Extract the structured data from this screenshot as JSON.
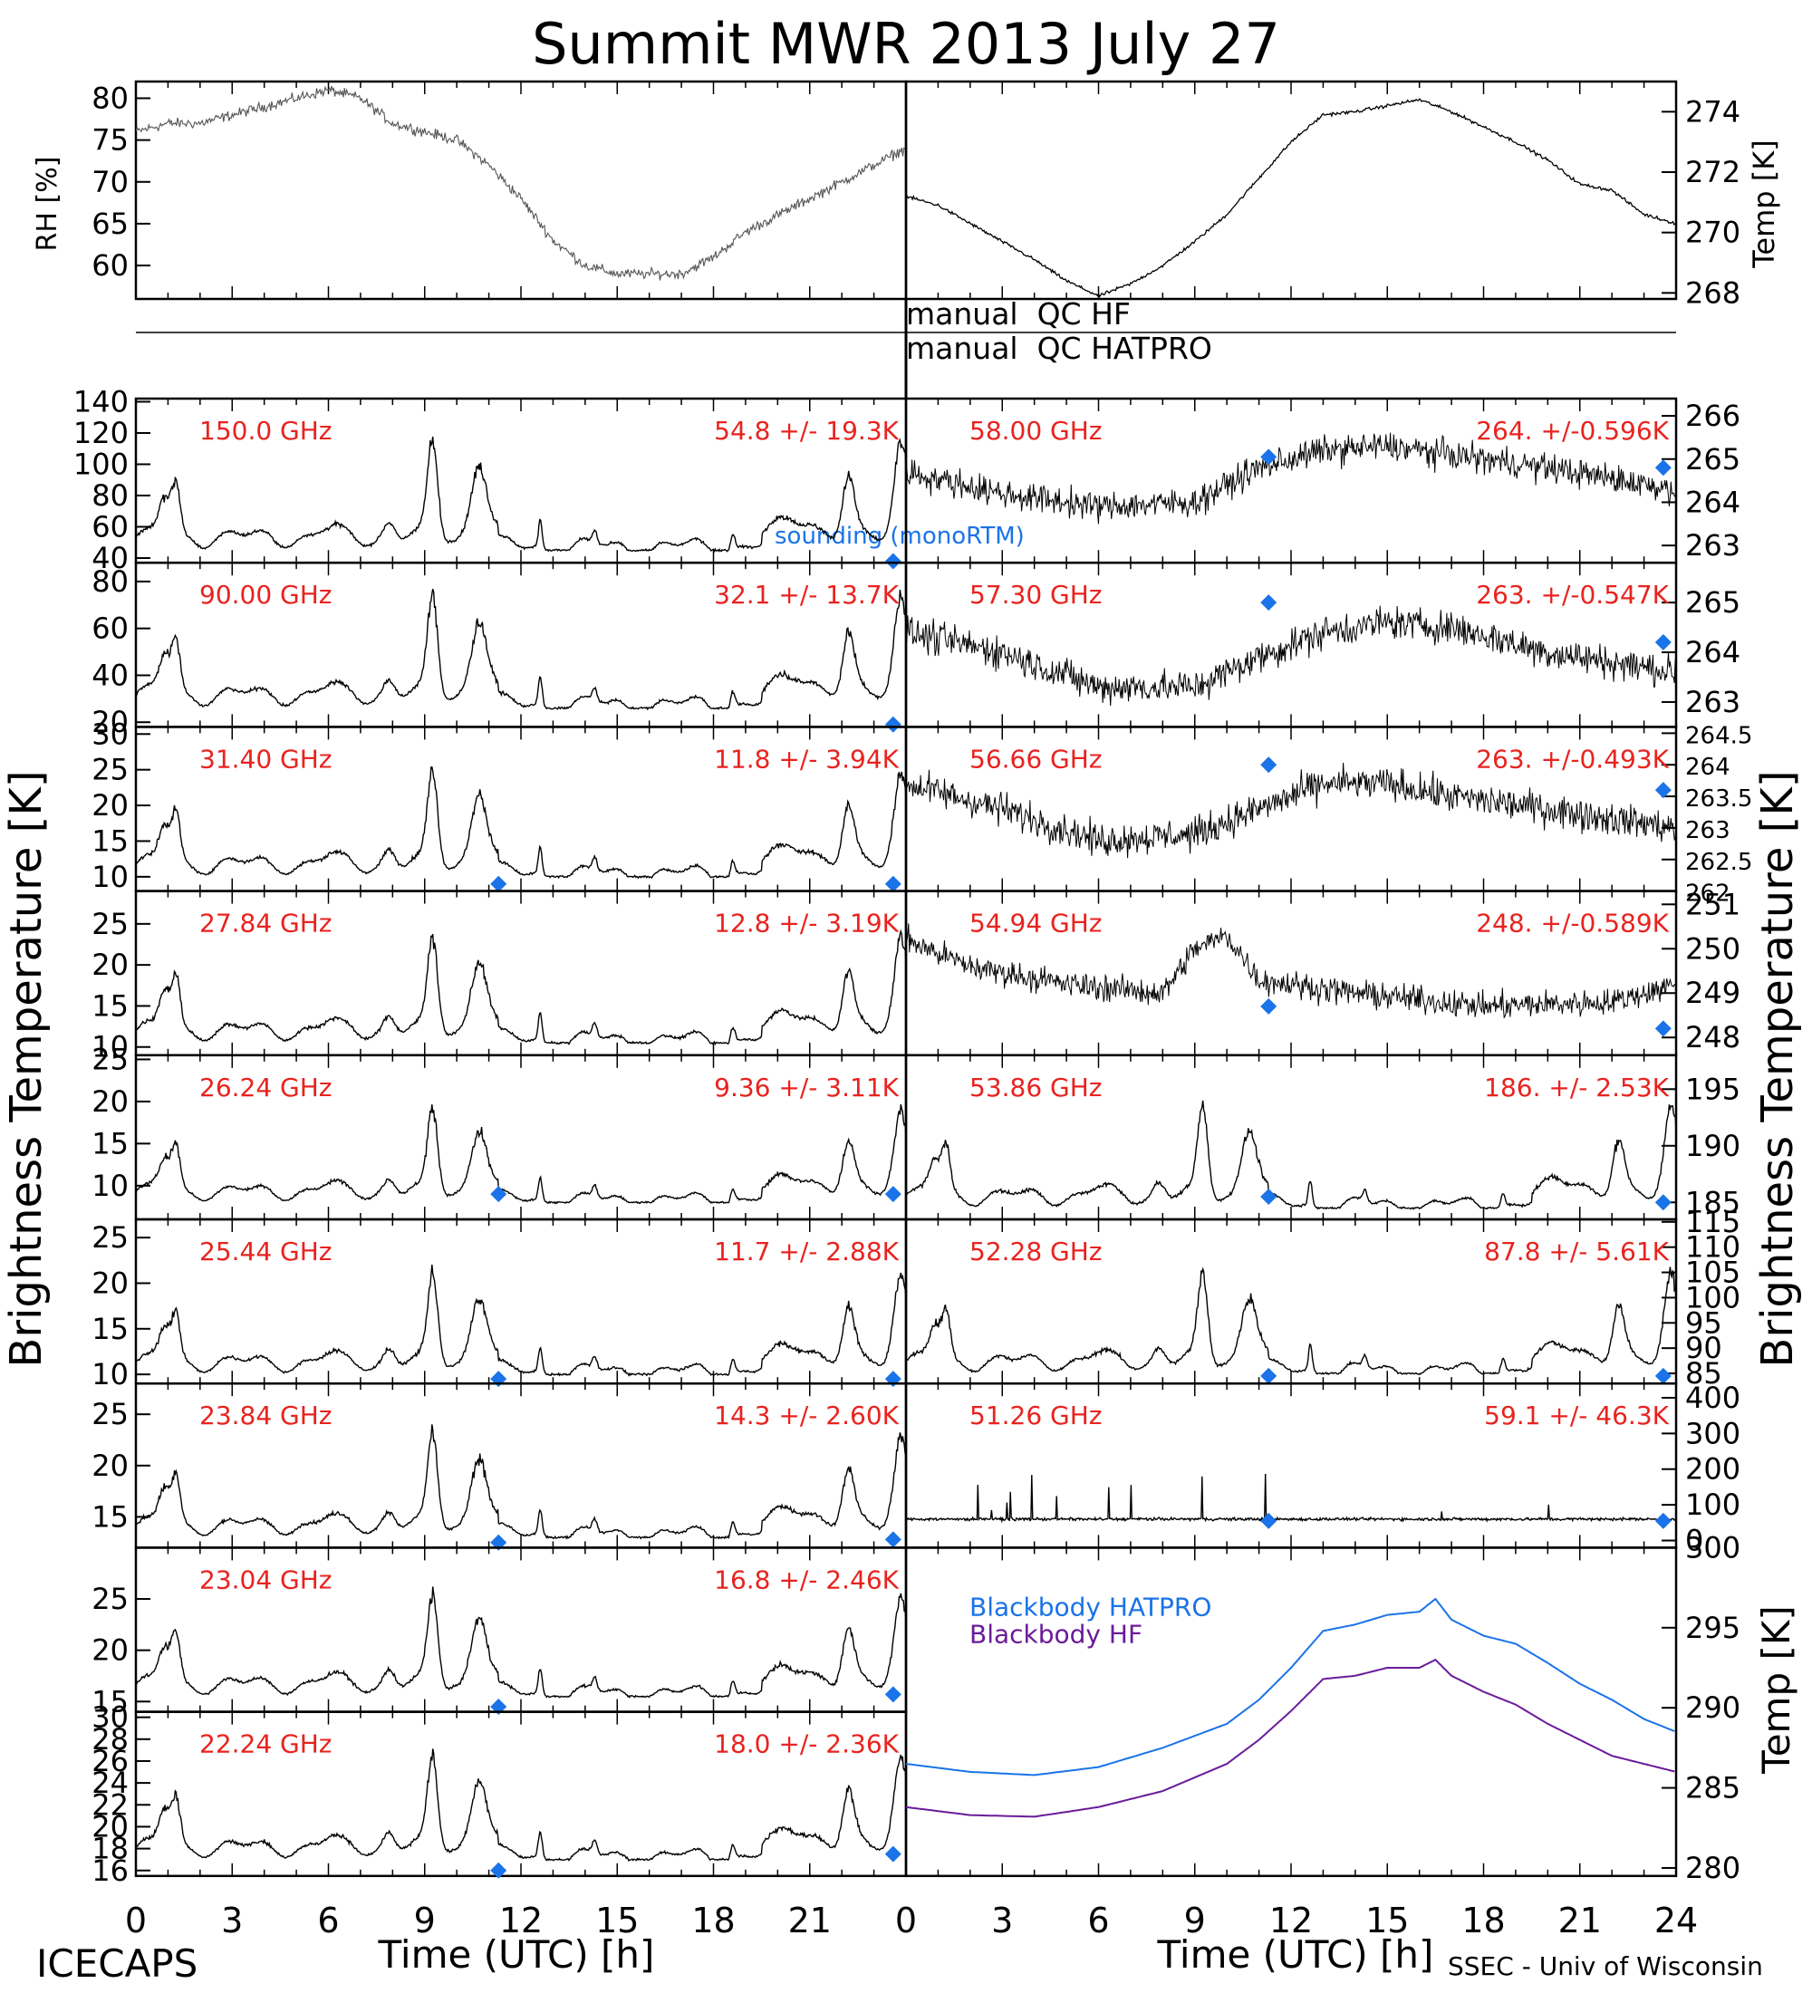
{
  "title": "Summit MWR 2013 July 27",
  "footer": {
    "left": "ICECAPS",
    "right": "SSEC - Univ of Wisconsin"
  },
  "xaxis": {
    "label": "Time (UTC) [h]",
    "range": [
      0,
      24
    ],
    "ticks": [
      0,
      3,
      6,
      9,
      12,
      15,
      18,
      21,
      24
    ]
  },
  "labels": {
    "rh": "RH [%]",
    "temp": "Temp [K]",
    "tb": "Brightness Temperature [K]",
    "qc_hf": "manual  QC HF",
    "qc_hatpro": "manual  QC HATPRO",
    "sounding": "sounding (monoRTM)"
  },
  "colors": {
    "data": "#000000",
    "label": "#e8231f",
    "sounding": "#1a73e8",
    "bb_hatpro": "#1a73e8",
    "bb_hf": "#6a1b9a"
  },
  "chart_data": [
    {
      "type": "line",
      "id": "rh",
      "ylabel": "RH [%]",
      "ylim": [
        56,
        82
      ],
      "yticks": [
        60,
        65,
        70,
        75,
        80
      ],
      "x": [
        0,
        1,
        2,
        3,
        4,
        5,
        6,
        7,
        8,
        9,
        10,
        11,
        12,
        13,
        14,
        15,
        16,
        17,
        18,
        19,
        20,
        21,
        22,
        23,
        24
      ],
      "y": [
        76,
        77,
        77,
        78,
        79,
        80,
        81,
        80,
        77,
        76,
        75,
        72,
        68,
        63,
        60,
        59,
        59,
        59,
        61,
        64,
        66,
        68,
        70,
        72,
        74
      ]
    },
    {
      "type": "line",
      "id": "air_temp",
      "ylabel": "Temp [K]",
      "ylim": [
        267.8,
        275
      ],
      "yticks": [
        268,
        270,
        272,
        274
      ],
      "x": [
        0,
        1,
        2,
        3,
        4,
        5,
        6,
        7,
        8,
        9,
        10,
        11,
        12,
        13,
        14,
        15,
        16,
        17,
        18,
        19,
        20,
        21,
        22,
        23,
        24
      ],
      "y": [
        271.2,
        270.9,
        270.3,
        269.7,
        269.1,
        268.4,
        267.9,
        268.3,
        268.9,
        269.7,
        270.6,
        271.8,
        273.0,
        273.9,
        274.0,
        274.2,
        274.4,
        274.0,
        273.5,
        273.0,
        272.4,
        271.6,
        271.4,
        270.6,
        270.3
      ]
    },
    {
      "type": "line",
      "id": "ch150",
      "freq": "150.0 GHz",
      "stats": "54.8 +/-  19.3K",
      "ylim": [
        37,
        142
      ],
      "yticks": [
        40,
        60,
        80,
        100,
        120,
        140
      ],
      "base": 45,
      "amp": 70,
      "sounding": [
        [
          23.6,
          38
        ]
      ]
    },
    {
      "type": "line",
      "id": "ch90",
      "freq": "90.00 GHz",
      "stats": "32.1 +/-  13.7K",
      "ylim": [
        18,
        88
      ],
      "yticks": [
        20,
        40,
        60,
        80
      ],
      "base": 26,
      "amp": 48,
      "sounding": [
        [
          23.6,
          19
        ]
      ]
    },
    {
      "type": "line",
      "id": "ch3140",
      "freq": "31.40 GHz",
      "stats": "11.8 +/- 3.94K",
      "ylim": [
        8,
        31
      ],
      "yticks": [
        10,
        15,
        20,
        25,
        30
      ],
      "base": 10,
      "amp": 15,
      "sounding": [
        [
          11.3,
          9
        ],
        [
          23.6,
          9
        ]
      ]
    },
    {
      "type": "line",
      "id": "ch2784",
      "freq": "27.84 GHz",
      "stats": "12.8 +/- 3.19K",
      "ylim": [
        9,
        29
      ],
      "yticks": [
        10,
        15,
        20,
        25
      ],
      "base": 10.5,
      "amp": 13,
      "sounding": []
    },
    {
      "type": "line",
      "id": "ch2624",
      "freq": "26.24 GHz",
      "stats": "9.36 +/- 3.11K",
      "ylim": [
        6,
        25.5
      ],
      "yticks": [
        10,
        15,
        20,
        25
      ],
      "base": 8,
      "amp": 11,
      "sounding": [
        [
          11.3,
          9
        ],
        [
          23.6,
          9
        ]
      ]
    },
    {
      "type": "line",
      "id": "ch2544",
      "freq": "25.44 GHz",
      "stats": "11.7 +/- 2.88K",
      "ylim": [
        9,
        27
      ],
      "yticks": [
        10,
        15,
        20,
        25
      ],
      "base": 10,
      "amp": 11,
      "sounding": [
        [
          11.3,
          9.5
        ],
        [
          23.6,
          9.5
        ]
      ]
    },
    {
      "type": "line",
      "id": "ch2384",
      "freq": "23.84 GHz",
      "stats": "14.3 +/- 2.60K",
      "ylim": [
        12,
        28
      ],
      "yticks": [
        15,
        20,
        25
      ],
      "base": 13,
      "amp": 10,
      "sounding": [
        [
          11.3,
          12.5
        ],
        [
          23.6,
          12.8
        ]
      ]
    },
    {
      "type": "line",
      "id": "ch2304",
      "freq": "23.04 GHz",
      "stats": "16.8 +/- 2.46K",
      "ylim": [
        14,
        30
      ],
      "yticks": [
        15,
        20,
        25
      ],
      "base": 15.5,
      "amp": 10,
      "sounding": [
        [
          11.3,
          14.5
        ],
        [
          23.6,
          15.7
        ]
      ]
    },
    {
      "type": "line",
      "id": "ch2224",
      "freq": "22.24 GHz",
      "stats": "18.0 +/- 2.36K",
      "ylim": [
        15.5,
        30.5
      ],
      "yticks": [
        16,
        18,
        20,
        22,
        24,
        26,
        28,
        30
      ],
      "base": 17,
      "amp": 9.5,
      "sounding": [
        [
          11.3,
          16
        ],
        [
          23.6,
          17.5
        ]
      ]
    },
    {
      "type": "line",
      "id": "ch5800",
      "freq": "58.00 GHz",
      "stats": "264. +/-0.596K",
      "ylim": [
        262.6,
        266.4
      ],
      "yticks": [
        263,
        264,
        265,
        266
      ],
      "trend": [
        [
          0,
          264.7
        ],
        [
          3,
          264.2
        ],
        [
          6,
          263.9
        ],
        [
          9,
          264.0
        ],
        [
          11,
          264.8
        ],
        [
          13,
          265.2
        ],
        [
          15,
          265.3
        ],
        [
          17,
          265.1
        ],
        [
          20,
          264.8
        ],
        [
          24,
          264.3
        ]
      ],
      "noise": 0.9,
      "sounding": [
        [
          11.3,
          265.05
        ],
        [
          23.6,
          264.8
        ]
      ]
    },
    {
      "type": "line",
      "id": "ch5730",
      "freq": "57.30 GHz",
      "stats": "263. +/-0.547K",
      "ylim": [
        262.5,
        265.8
      ],
      "yticks": [
        263,
        264,
        265
      ],
      "trend": [
        [
          0,
          264.4
        ],
        [
          3,
          264.0
        ],
        [
          6,
          263.3
        ],
        [
          9,
          263.3
        ],
        [
          11,
          263.9
        ],
        [
          13,
          264.4
        ],
        [
          15,
          264.6
        ],
        [
          17,
          264.5
        ],
        [
          20,
          264.0
        ],
        [
          24,
          263.6
        ]
      ],
      "noise": 0.9,
      "sounding": [
        [
          11.3,
          265.0
        ],
        [
          23.6,
          264.2
        ]
      ]
    },
    {
      "type": "line",
      "id": "ch5666",
      "freq": "56.66 GHz",
      "stats": "263. +/-0.493K",
      "ylim": [
        262,
        264.6
      ],
      "yticks": [
        262.0,
        262.5,
        263.0,
        263.5,
        264.0,
        264.5
      ],
      "trend": [
        [
          0,
          263.7
        ],
        [
          3,
          263.3
        ],
        [
          6,
          262.8
        ],
        [
          9,
          262.9
        ],
        [
          11,
          263.3
        ],
        [
          13,
          263.7
        ],
        [
          15,
          263.7
        ],
        [
          17,
          263.5
        ],
        [
          20,
          263.3
        ],
        [
          24,
          263.0
        ]
      ],
      "noise": 0.7,
      "sounding": [
        [
          11.3,
          264.0
        ],
        [
          23.6,
          263.6
        ]
      ]
    },
    {
      "type": "line",
      "id": "ch5494",
      "freq": "54.94 GHz",
      "stats": "248. +/-0.589K",
      "ylim": [
        247.6,
        251.3
      ],
      "yticks": [
        248,
        249,
        250,
        251
      ],
      "trend": [
        [
          0,
          250.2
        ],
        [
          2,
          249.6
        ],
        [
          5,
          249.2
        ],
        [
          8,
          249.0
        ],
        [
          9,
          250.0
        ],
        [
          10,
          250.3
        ],
        [
          11,
          249.3
        ],
        [
          14,
          249.0
        ],
        [
          18,
          248.7
        ],
        [
          22,
          248.8
        ],
        [
          24,
          249.2
        ]
      ],
      "noise": 0.8,
      "sounding": [
        [
          11.3,
          248.7
        ],
        [
          23.6,
          248.2
        ]
      ]
    },
    {
      "type": "line",
      "id": "ch5386",
      "freq": "53.86 GHz",
      "stats": "186. +/- 2.53K",
      "ylim": [
        183.5,
        198
      ],
      "yticks": [
        185,
        190,
        195
      ],
      "base": 184.5,
      "amp": 9,
      "sounding": [
        [
          11.3,
          185.5
        ],
        [
          23.6,
          185.0
        ]
      ]
    },
    {
      "type": "line",
      "id": "ch5228",
      "freq": "52.28 GHz",
      "stats": "87.8 +/- 5.61K",
      "ylim": [
        83,
        115.5
      ],
      "yticks": [
        85,
        90,
        95,
        100,
        105,
        110,
        115
      ],
      "base": 85,
      "amp": 20,
      "sounding": [
        [
          11.3,
          84.5
        ],
        [
          23.6,
          84.5
        ]
      ]
    },
    {
      "type": "line",
      "id": "ch5126",
      "freq": "51.26 GHz",
      "stats": "59.1 +/- 46.3K",
      "ylim": [
        -20,
        440
      ],
      "yticks": [
        0,
        100,
        200,
        300,
        400
      ],
      "flat": 60,
      "sounding": [
        [
          11.3,
          55
        ],
        [
          23.6,
          55
        ]
      ]
    },
    {
      "type": "line",
      "id": "blackbody",
      "ylabel": "Temp [K]",
      "ylim": [
        279.5,
        300
      ],
      "yticks": [
        280,
        285,
        290,
        295,
        300
      ],
      "x": [
        0,
        2,
        4,
        6,
        8,
        10,
        11,
        12,
        13,
        14,
        15,
        16,
        16.5,
        17,
        18,
        19,
        20,
        21,
        22,
        23,
        24
      ],
      "series": [
        {
          "name": "Blackbody HATPRO",
          "values": [
            286.5,
            286.0,
            285.8,
            286.3,
            287.5,
            289.0,
            290.5,
            292.5,
            294.8,
            295.2,
            295.8,
            296.0,
            296.8,
            295.5,
            294.5,
            294.0,
            292.8,
            291.5,
            290.5,
            289.3,
            288.5
          ]
        },
        {
          "name": "Blackbody HF",
          "values": [
            283.8,
            283.3,
            283.2,
            283.8,
            284.8,
            286.5,
            288.0,
            289.8,
            291.8,
            292.0,
            292.5,
            292.5,
            293.0,
            292.0,
            291.0,
            290.2,
            289.0,
            288.0,
            287.0,
            286.5,
            286.0
          ]
        }
      ]
    }
  ]
}
